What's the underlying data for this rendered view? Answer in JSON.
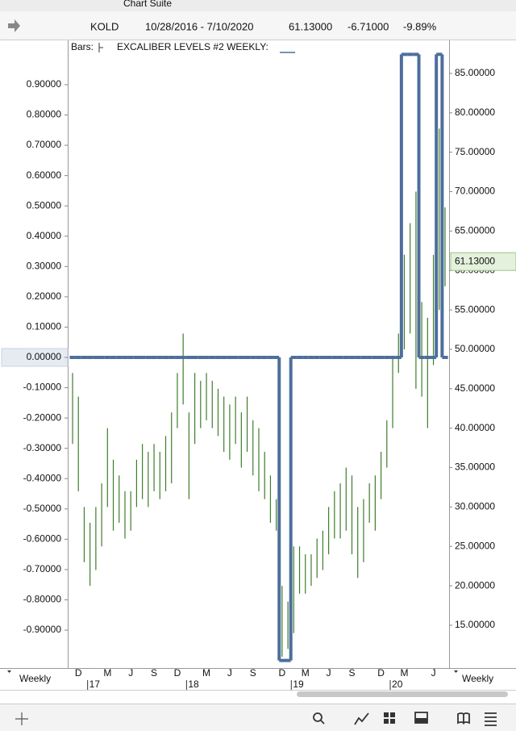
{
  "window": {
    "title": "Chart Suite"
  },
  "toolbar": {
    "symbol": "KOLD",
    "range": "10/28/2016 - 7/10/2020",
    "last": "61.13000",
    "change": "-6.71000",
    "change_pct": "-9.89%"
  },
  "footer": {
    "left_period": "Weekly",
    "right_period": "Weekly"
  },
  "chart_data": {
    "type": "price-bar",
    "categories": [
      null,
      "D",
      null,
      null,
      null,
      null,
      "M",
      null,
      null,
      null,
      "J",
      null,
      null,
      null,
      "S",
      null,
      null,
      null,
      "D",
      null,
      null,
      null,
      null,
      "M",
      null,
      null,
      null,
      "J",
      null,
      null,
      null,
      "S",
      null,
      null,
      null,
      null,
      "D",
      null,
      null,
      null,
      "M",
      null,
      null,
      null,
      "J",
      null,
      null,
      null,
      "S",
      null,
      null,
      null,
      null,
      "D",
      null,
      null,
      null,
      "M",
      null,
      null,
      null,
      null,
      "J",
      null,
      null
    ],
    "year_categories": [
      null,
      null,
      null,
      "17",
      null,
      null,
      null,
      null,
      null,
      null,
      null,
      null,
      null,
      null,
      null,
      null,
      null,
      null,
      null,
      null,
      "18",
      null,
      null,
      null,
      null,
      null,
      null,
      null,
      null,
      null,
      null,
      null,
      null,
      null,
      null,
      null,
      null,
      null,
      "19",
      null,
      null,
      null,
      null,
      null,
      null,
      null,
      null,
      null,
      null,
      null,
      null,
      null,
      null,
      null,
      null,
      "20",
      null,
      null,
      null,
      null,
      null,
      null,
      null,
      null,
      null
    ],
    "series": [
      {
        "name": "Bars:",
        "color": "#3d7d2b",
        "axis": "y2",
        "low": [
          38,
          32,
          23,
          20,
          22,
          25,
          30,
          27,
          28,
          26,
          27,
          30,
          31,
          30,
          32,
          31,
          32,
          33,
          40,
          43,
          31,
          38,
          40,
          41,
          40,
          39,
          37,
          36,
          38,
          35,
          37,
          34,
          32,
          31,
          28,
          27,
          11,
          12,
          14,
          19,
          19,
          20,
          21,
          22,
          24,
          26,
          26,
          27,
          24,
          21,
          23,
          28,
          27,
          31,
          35,
          40,
          47,
          50,
          52,
          45,
          44,
          40,
          48,
          55,
          58
        ],
        "high": [
          47,
          44,
          30,
          28,
          30,
          33,
          40,
          36,
          34,
          32,
          32,
          36,
          38,
          37,
          38,
          37,
          39,
          42,
          47,
          52,
          42,
          47,
          46,
          47,
          46,
          45,
          44,
          43,
          44,
          42,
          44,
          41,
          40,
          37,
          34,
          31,
          20,
          18,
          25,
          25,
          24,
          24,
          26,
          27,
          30,
          32,
          33,
          35,
          34,
          30,
          31,
          33,
          34,
          37,
          41,
          49,
          52,
          62,
          66,
          70,
          56,
          54,
          62,
          78,
          68
        ]
      },
      {
        "name": "EXCALIBER LEVELS #2 WEEKLY:",
        "color": "#4d6e9c",
        "values": [
          0,
          0,
          0,
          0,
          0,
          0,
          0,
          0,
          0,
          0,
          0,
          0,
          0,
          0,
          0,
          0,
          0,
          0,
          0,
          0,
          0,
          0,
          0,
          0,
          0,
          0,
          0,
          0,
          0,
          0,
          0,
          0,
          0,
          0,
          0,
          0,
          -1,
          -1,
          0,
          0,
          0,
          0,
          0,
          0,
          0,
          0,
          0,
          0,
          0,
          0,
          0,
          0,
          0,
          0,
          0,
          0,
          0,
          1,
          1,
          1,
          0,
          0,
          0,
          1,
          0
        ]
      }
    ],
    "ylim": [
      -1.017,
      1.033
    ],
    "yticks": [
      {
        "value": 0.9,
        "label": "0.90000"
      },
      {
        "value": 0.8,
        "label": "0.80000"
      },
      {
        "value": 0.7,
        "label": "0.70000"
      },
      {
        "value": 0.6,
        "label": "0.60000"
      },
      {
        "value": 0.5,
        "label": "0.50000"
      },
      {
        "value": 0.4,
        "label": "0.40000"
      },
      {
        "value": 0.3,
        "label": "0.30000"
      },
      {
        "value": 0.2,
        "label": "0.20000"
      },
      {
        "value": 0.1,
        "label": "0.10000"
      },
      {
        "value": 0,
        "label": "0.00000"
      },
      {
        "value": -0.1,
        "label": "-0.10000"
      },
      {
        "value": -0.2,
        "label": "-0.20000"
      },
      {
        "value": -0.3,
        "label": "-0.30000"
      },
      {
        "value": -0.4,
        "label": "-0.40000"
      },
      {
        "value": -0.5,
        "label": "-0.50000"
      },
      {
        "value": -0.6,
        "label": "-0.60000"
      },
      {
        "value": -0.7,
        "label": "-0.70000"
      },
      {
        "value": -0.8,
        "label": "-0.80000"
      },
      {
        "value": -0.9,
        "label": "-0.90000"
      }
    ],
    "cursor_y": 0,
    "y2lim": [
      9.88,
      88.68
    ],
    "y2ticks": [
      {
        "value": 85,
        "label": "85.00000"
      },
      {
        "value": 80,
        "label": "80.00000"
      },
      {
        "value": 75,
        "label": "75.00000"
      },
      {
        "value": 70,
        "label": "70.00000"
      },
      {
        "value": 65,
        "label": "65.00000"
      },
      {
        "value": 60,
        "label": "60.00000"
      },
      {
        "value": 55,
        "label": "55.00000"
      },
      {
        "value": 50,
        "label": "50.00000"
      },
      {
        "value": 45,
        "label": "45.00000"
      },
      {
        "value": 40,
        "label": "40.00000"
      },
      {
        "value": 35,
        "label": "35.00000"
      },
      {
        "value": 30,
        "label": "30.00000"
      },
      {
        "value": 25,
        "label": "25.00000"
      },
      {
        "value": 20,
        "label": "20.00000"
      },
      {
        "value": 15,
        "label": "15.00000"
      }
    ],
    "last_price": {
      "value": 61.13,
      "label": "61.13000"
    }
  }
}
